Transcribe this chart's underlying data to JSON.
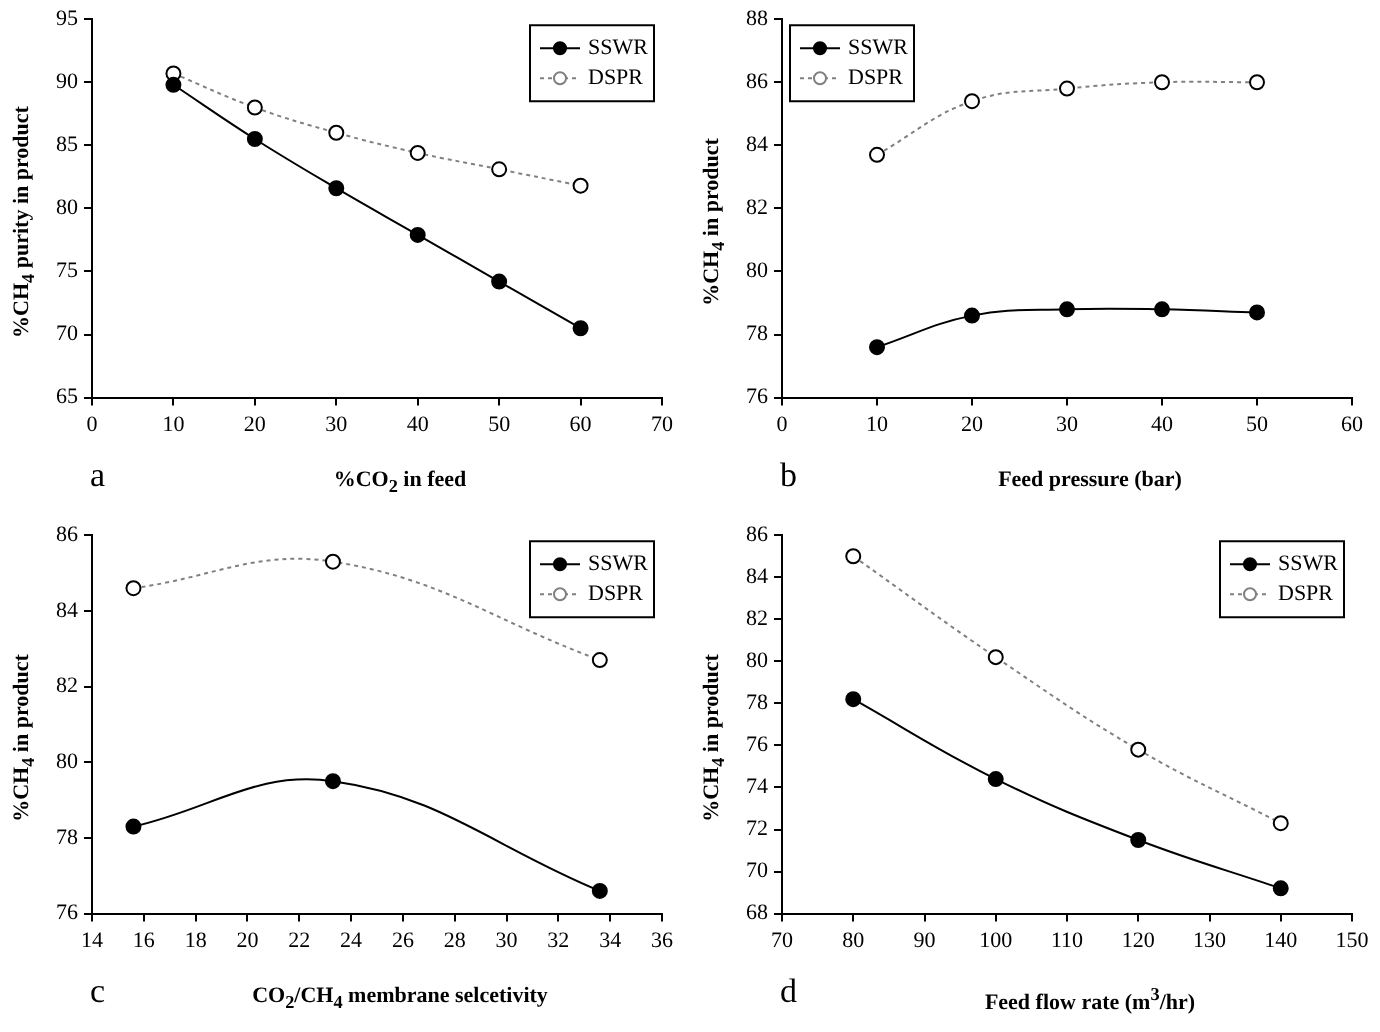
{
  "chart_data": [
    {
      "type": "line",
      "xlabel": "%CO$_{2}$ in feed",
      "ylabel": "%CH$_{4}$ purity in product",
      "x": [
        10,
        20,
        30,
        40,
        50,
        60
      ],
      "xlim": [
        0,
        70
      ],
      "xticks": [
        0,
        10,
        20,
        30,
        40,
        50,
        60,
        70
      ],
      "ylim": [
        65,
        95
      ],
      "yticks": [
        65,
        70,
        75,
        80,
        85,
        90,
        95
      ],
      "legend": "top right",
      "marker": "circle",
      "annotations": [
        "a"
      ],
      "series": [
        {
          "name": "SSWR",
          "color": "#000000",
          "line_style": "solid",
          "values": [
            89.8,
            85.5,
            81.6,
            77.9,
            74.2,
            70.5
          ]
        },
        {
          "name": "DSPR",
          "color": "#808080",
          "line_style": "dotted",
          "values": [
            90.7,
            88.0,
            86.0,
            84.4,
            83.1,
            81.8
          ]
        }
      ]
    },
    {
      "type": "line",
      "xlabel": "Feed pressure (bar)",
      "ylabel": "%CH$_{4}$ in product",
      "x": [
        10,
        20,
        30,
        40,
        50
      ],
      "xlim": [
        0,
        60
      ],
      "xticks": [
        0,
        10,
        20,
        30,
        40,
        50,
        60
      ],
      "ylim": [
        76,
        88
      ],
      "yticks": [
        76,
        78,
        80,
        82,
        84,
        86,
        88
      ],
      "legend": "top left",
      "marker": "circle",
      "annotations": [
        "b"
      ],
      "series": [
        {
          "name": "SSWR",
          "color": "#000000",
          "line_style": "solid",
          "values": [
            77.6,
            78.6,
            78.8,
            78.8,
            78.7
          ]
        },
        {
          "name": "DSPR",
          "color": "#808080",
          "line_style": "dotted",
          "values": [
            83.7,
            85.4,
            85.8,
            86.0,
            86.0
          ]
        }
      ]
    },
    {
      "type": "line",
      "xlabel": "CO$_{2}$/CH$_{4}$ membrane selcetivity",
      "ylabel": "%CH$_{4}$ in product",
      "x": [
        15.6,
        23.3,
        33.6
      ],
      "xlim": [
        14,
        36
      ],
      "xticks": [
        14,
        16,
        18,
        20,
        22,
        24,
        26,
        28,
        30,
        32,
        34,
        36
      ],
      "ylim": [
        76,
        86
      ],
      "yticks": [
        76,
        78,
        80,
        82,
        84,
        86
      ],
      "legend": "top right",
      "marker": "circle",
      "annotations": [
        "c"
      ],
      "series": [
        {
          "name": "SSWR",
          "color": "#000000",
          "line_style": "solid",
          "values": [
            78.3,
            79.5,
            76.6
          ]
        },
        {
          "name": "DSPR",
          "color": "#808080",
          "line_style": "dotted",
          "values": [
            84.6,
            85.3,
            82.7
          ]
        }
      ]
    },
    {
      "type": "line",
      "xlabel": "Feed flow rate (m$^{3}$/hr)",
      "ylabel": "%CH$_{4}$ in product",
      "x": [
        80,
        100,
        120,
        140
      ],
      "xlim": [
        70,
        150
      ],
      "xticks": [
        70,
        80,
        90,
        100,
        110,
        120,
        130,
        140,
        150
      ],
      "ylim": [
        68,
        86
      ],
      "yticks": [
        68,
        70,
        72,
        74,
        76,
        78,
        80,
        82,
        84,
        86
      ],
      "legend": "top right",
      "marker": "circle",
      "annotations": [
        "d"
      ],
      "series": [
        {
          "name": "SSWR",
          "color": "#000000",
          "line_style": "solid",
          "values": [
            78.2,
            74.4,
            71.5,
            69.2
          ]
        },
        {
          "name": "DSPR",
          "color": "#808080",
          "line_style": "dotted",
          "values": [
            85.0,
            80.2,
            75.8,
            72.3
          ]
        }
      ]
    }
  ]
}
